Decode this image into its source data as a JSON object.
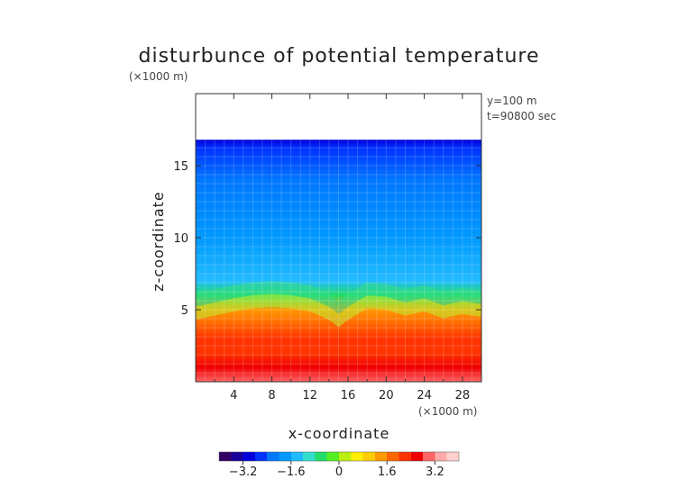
{
  "chart_data": {
    "type": "heatmap",
    "title": "disturbunce of potential temperature",
    "xlabel": "x-coordinate",
    "ylabel": "z-coordinate",
    "x_unit": "(×1000 m)",
    "y_unit": "(×1000 m)",
    "annotations": [
      "y=100 m",
      "t=90800 sec"
    ],
    "xlim": [
      0,
      30
    ],
    "ylim": [
      0,
      20
    ],
    "x_ticks": [
      4,
      8,
      12,
      16,
      20,
      24,
      28
    ],
    "y_ticks": [
      5,
      10,
      15
    ],
    "data_top_z": 16.8,
    "colorbar": {
      "min": -4.0,
      "max": 4.0,
      "ticks": [
        -3.2,
        -1.6,
        0,
        1.6,
        3.2
      ],
      "tick_labels": [
        "−3.2",
        "−1.6",
        "0",
        "1.6",
        "3.2"
      ],
      "colors": [
        "#330066",
        "#1a0099",
        "#0000dd",
        "#0033ff",
        "#0077ff",
        "#0099ff",
        "#22bbff",
        "#33ddcc",
        "#22dd66",
        "#55ee22",
        "#bbee11",
        "#ffee00",
        "#ffcc00",
        "#ff9900",
        "#ff6600",
        "#ff3300",
        "#ee0000",
        "#ff6666",
        "#ffaaaa",
        "#ffd0d0"
      ]
    },
    "profile": [
      {
        "z": 0,
        "value": 2.9
      },
      {
        "z": 1,
        "value": 2.6
      },
      {
        "z": 2,
        "value": 2.3
      },
      {
        "z": 3,
        "value": 2.0
      },
      {
        "z": 4,
        "value": 1.7
      },
      {
        "z": 5,
        "value": 1.2
      },
      {
        "z": 6,
        "value": -0.6
      },
      {
        "z": 7,
        "value": -1.4
      },
      {
        "z": 10,
        "value": -1.8
      },
      {
        "z": 14,
        "value": -2.1
      },
      {
        "z": 16.2,
        "value": -2.6
      },
      {
        "z": 16.8,
        "value": -3.0
      }
    ],
    "interface_height": [
      {
        "x": 0,
        "z": 5.6
      },
      {
        "x": 2,
        "z": 5.9
      },
      {
        "x": 4,
        "z": 6.2
      },
      {
        "x": 6,
        "z": 6.4
      },
      {
        "x": 8,
        "z": 6.5
      },
      {
        "x": 10,
        "z": 6.4
      },
      {
        "x": 12,
        "z": 6.2
      },
      {
        "x": 14,
        "z": 5.6
      },
      {
        "x": 15,
        "z": 5.1
      },
      {
        "x": 16,
        "z": 5.6
      },
      {
        "x": 18,
        "z": 6.4
      },
      {
        "x": 20,
        "z": 6.3
      },
      {
        "x": 22,
        "z": 5.9
      },
      {
        "x": 24,
        "z": 6.2
      },
      {
        "x": 26,
        "z": 5.7
      },
      {
        "x": 28,
        "z": 6.0
      },
      {
        "x": 30,
        "z": 5.8
      }
    ]
  }
}
